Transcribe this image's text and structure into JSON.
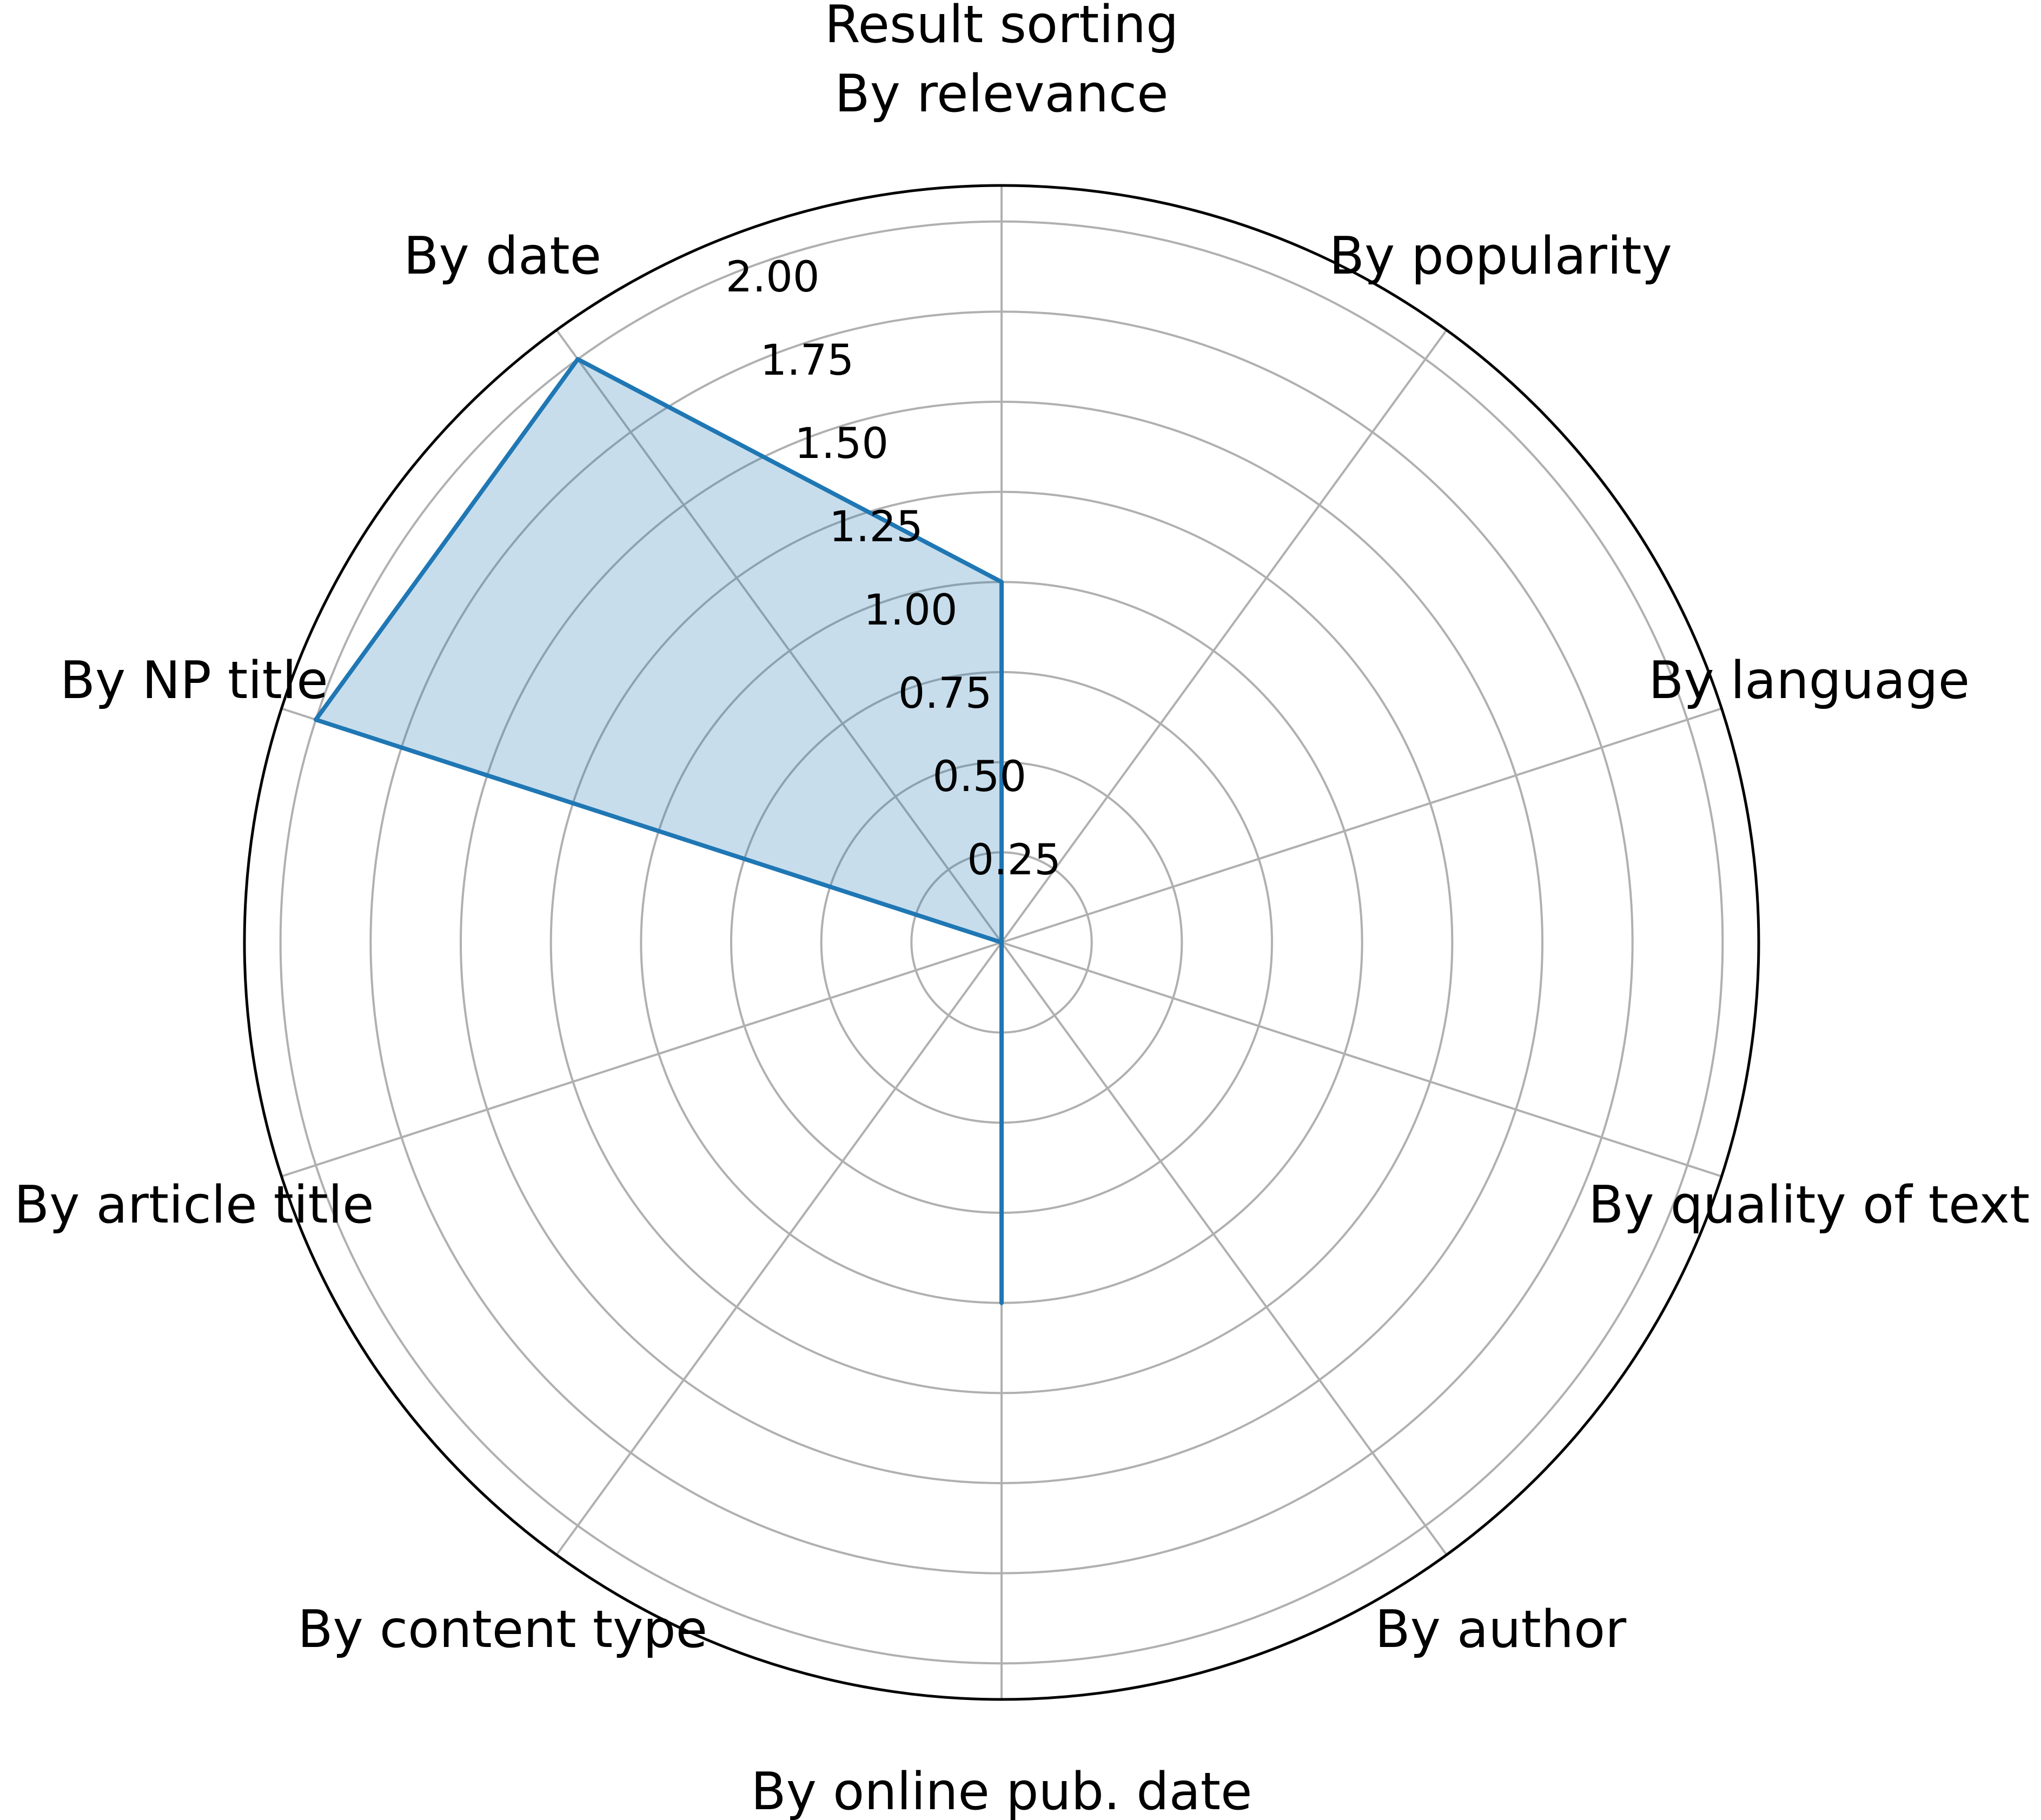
{
  "chart_data": {
    "type": "radar",
    "title": "Result sorting",
    "categories": [
      "By relevance",
      "By popularity",
      "By language",
      "By quality of text",
      "By author",
      "By online pub. date",
      "By content type",
      "By article title",
      "By NP title",
      "By date"
    ],
    "values": [
      1,
      0,
      0,
      0,
      0,
      1,
      0,
      0,
      2,
      2
    ],
    "r_ticks": [
      "0.25",
      "0.50",
      "0.75",
      "1.00",
      "1.25",
      "1.50",
      "1.75",
      "2.00"
    ],
    "r_tick_values": [
      0.25,
      0.5,
      0.75,
      1.0,
      1.25,
      1.5,
      1.75,
      2.0
    ],
    "rlim": [
      0,
      2.1
    ],
    "grid": true,
    "colors": {
      "line": "#1f77b4",
      "fill": "#1f77b4",
      "grid": "#b0b0b0",
      "frame": "#000000"
    }
  }
}
